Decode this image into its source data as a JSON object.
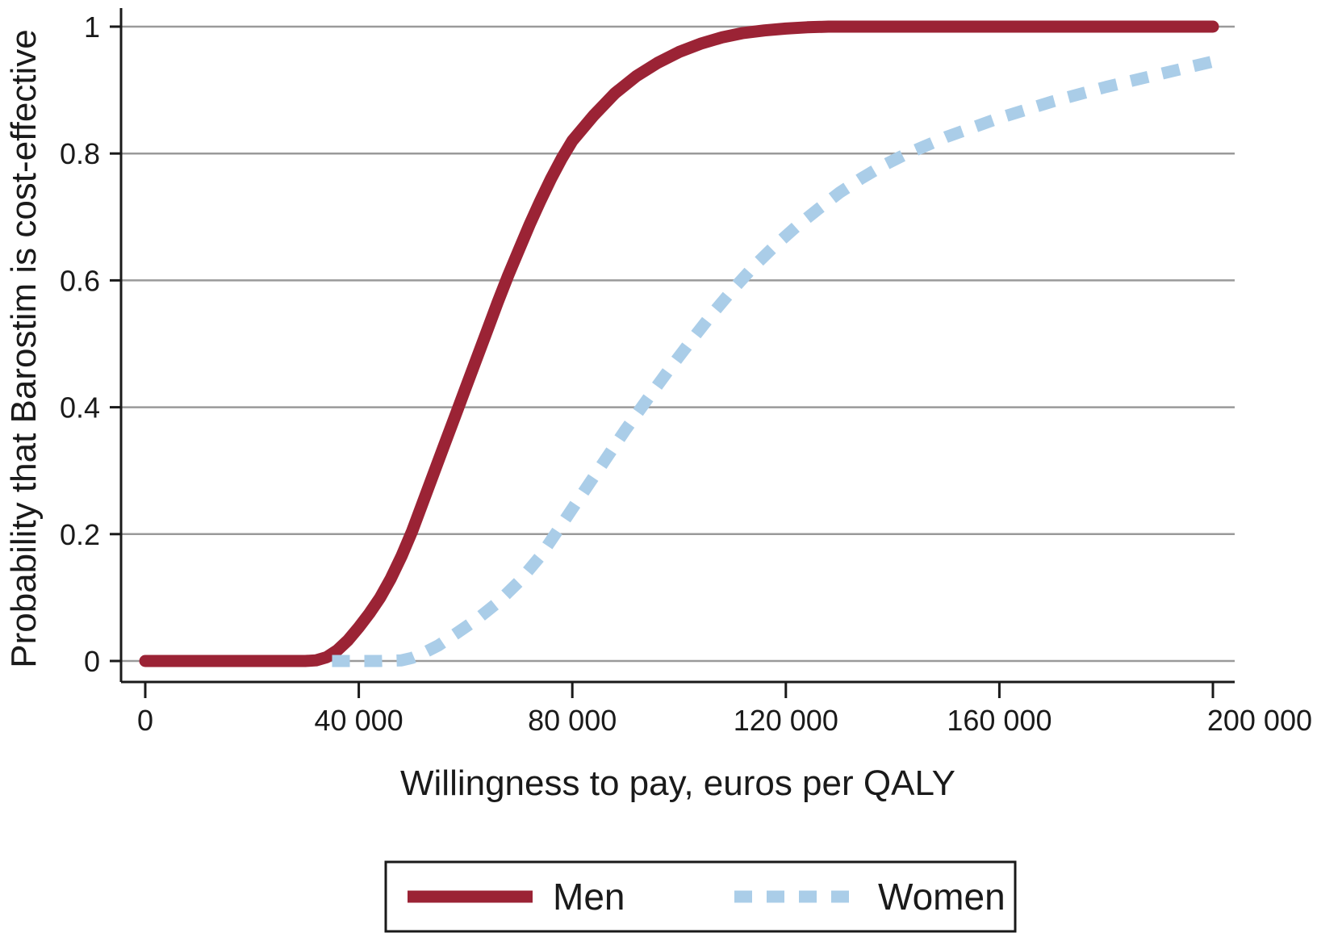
{
  "chart_data": {
    "type": "line",
    "xlabel": "Willingness to pay, euros per QALY",
    "ylabel": "Probability that Barostim is cost-effective",
    "xlim": [
      0,
      200000
    ],
    "ylim": [
      0,
      1
    ],
    "x_ticks": [
      0,
      40000,
      80000,
      120000,
      160000,
      200000
    ],
    "x_tick_labels": [
      "0",
      "40 000",
      "80 000",
      "120 000",
      "160 000",
      "200 000"
    ],
    "y_ticks": [
      0,
      0.2,
      0.4,
      0.6,
      0.8,
      1
    ],
    "y_tick_labels": [
      "0",
      "0.2",
      "0.4",
      "0.6",
      "0.8",
      "1"
    ],
    "grid": "horizontal",
    "legend_position": "bottom",
    "series": [
      {
        "name": "Men",
        "color": "#9b2335",
        "style": "solid",
        "x": [
          0,
          10000,
          20000,
          30000,
          32000,
          34000,
          36000,
          38000,
          40000,
          42000,
          44000,
          46000,
          48000,
          50000,
          52000,
          54000,
          56000,
          58000,
          60000,
          62000,
          64000,
          66000,
          68000,
          70000,
          72000,
          74000,
          76000,
          78000,
          80000,
          84000,
          88000,
          92000,
          96000,
          100000,
          104000,
          108000,
          112000,
          116000,
          120000,
          124000,
          128000,
          132000,
          136000,
          140000,
          150000,
          160000,
          170000,
          180000,
          190000,
          200000
        ],
        "values": [
          0,
          0,
          0,
          0,
          0.001,
          0.006,
          0.017,
          0.033,
          0.053,
          0.075,
          0.1,
          0.13,
          0.165,
          0.205,
          0.25,
          0.295,
          0.34,
          0.385,
          0.43,
          0.475,
          0.52,
          0.565,
          0.608,
          0.648,
          0.688,
          0.725,
          0.76,
          0.792,
          0.82,
          0.86,
          0.895,
          0.922,
          0.943,
          0.96,
          0.973,
          0.983,
          0.99,
          0.994,
          0.997,
          0.999,
          1,
          1,
          1,
          1,
          1,
          1,
          1,
          1,
          1,
          1
        ]
      },
      {
        "name": "Women",
        "color": "#aacde8",
        "style": "dashed",
        "x": [
          35000,
          40000,
          44000,
          48000,
          50000,
          52000,
          55000,
          58000,
          62000,
          66000,
          70000,
          74000,
          78000,
          82000,
          86000,
          90000,
          94000,
          98000,
          102000,
          106000,
          110000,
          114000,
          118000,
          122000,
          126000,
          130000,
          134000,
          138000,
          142000,
          150000,
          160000,
          170000,
          180000,
          190000,
          200000
        ],
        "values": [
          0,
          0,
          0,
          0.001,
          0.005,
          0.012,
          0.025,
          0.042,
          0.065,
          0.092,
          0.125,
          0.165,
          0.215,
          0.265,
          0.315,
          0.365,
          0.412,
          0.458,
          0.502,
          0.545,
          0.585,
          0.622,
          0.655,
          0.685,
          0.712,
          0.738,
          0.76,
          0.78,
          0.797,
          0.826,
          0.856,
          0.882,
          0.905,
          0.925,
          0.945
        ]
      }
    ]
  }
}
